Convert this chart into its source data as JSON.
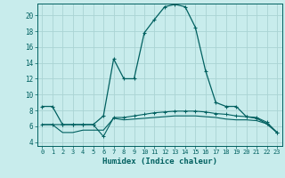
{
  "xlabel": "Humidex (Indice chaleur)",
  "bg_color": "#c8ecec",
  "grid_color": "#aad4d4",
  "line_color": "#006060",
  "xlim": [
    -0.5,
    23.5
  ],
  "ylim": [
    3.5,
    21.5
  ],
  "xticks": [
    0,
    1,
    2,
    3,
    4,
    5,
    6,
    7,
    8,
    9,
    10,
    11,
    12,
    13,
    14,
    15,
    16,
    17,
    18,
    19,
    20,
    21,
    22,
    23
  ],
  "yticks": [
    4,
    6,
    8,
    10,
    12,
    14,
    16,
    18,
    20
  ],
  "series1_x": [
    0,
    1,
    2,
    3,
    4,
    5,
    6,
    7,
    8,
    9,
    10,
    11,
    12,
    13,
    14,
    15,
    16,
    17,
    18,
    19,
    20,
    21,
    22,
    23
  ],
  "series1_y": [
    8.5,
    8.5,
    6.2,
    6.2,
    6.2,
    6.2,
    7.3,
    14.5,
    12.0,
    12.0,
    17.8,
    19.5,
    21.1,
    21.4,
    21.1,
    18.5,
    13.0,
    9.0,
    8.5,
    8.5,
    7.2,
    7.0,
    6.3,
    5.2
  ],
  "series2_x": [
    0,
    1,
    2,
    3,
    4,
    5,
    6,
    7,
    8,
    9,
    10,
    11,
    12,
    13,
    14,
    15,
    16,
    17,
    18,
    19,
    20,
    21,
    22,
    23
  ],
  "series2_y": [
    6.2,
    6.2,
    6.2,
    6.2,
    6.2,
    6.2,
    4.7,
    7.1,
    7.1,
    7.3,
    7.5,
    7.7,
    7.8,
    7.9,
    7.9,
    7.9,
    7.8,
    7.6,
    7.5,
    7.3,
    7.2,
    7.1,
    6.5,
    5.2
  ],
  "series3_x": [
    0,
    1,
    2,
    3,
    4,
    5,
    6,
    7,
    8,
    9,
    10,
    11,
    12,
    13,
    14,
    15,
    16,
    17,
    18,
    19,
    20,
    21,
    22,
    23
  ],
  "series3_y": [
    6.2,
    6.2,
    5.2,
    5.2,
    5.5,
    5.5,
    5.5,
    7.0,
    6.8,
    6.9,
    7.0,
    7.1,
    7.2,
    7.3,
    7.3,
    7.3,
    7.2,
    7.1,
    6.9,
    6.8,
    6.8,
    6.7,
    6.3,
    5.2
  ]
}
